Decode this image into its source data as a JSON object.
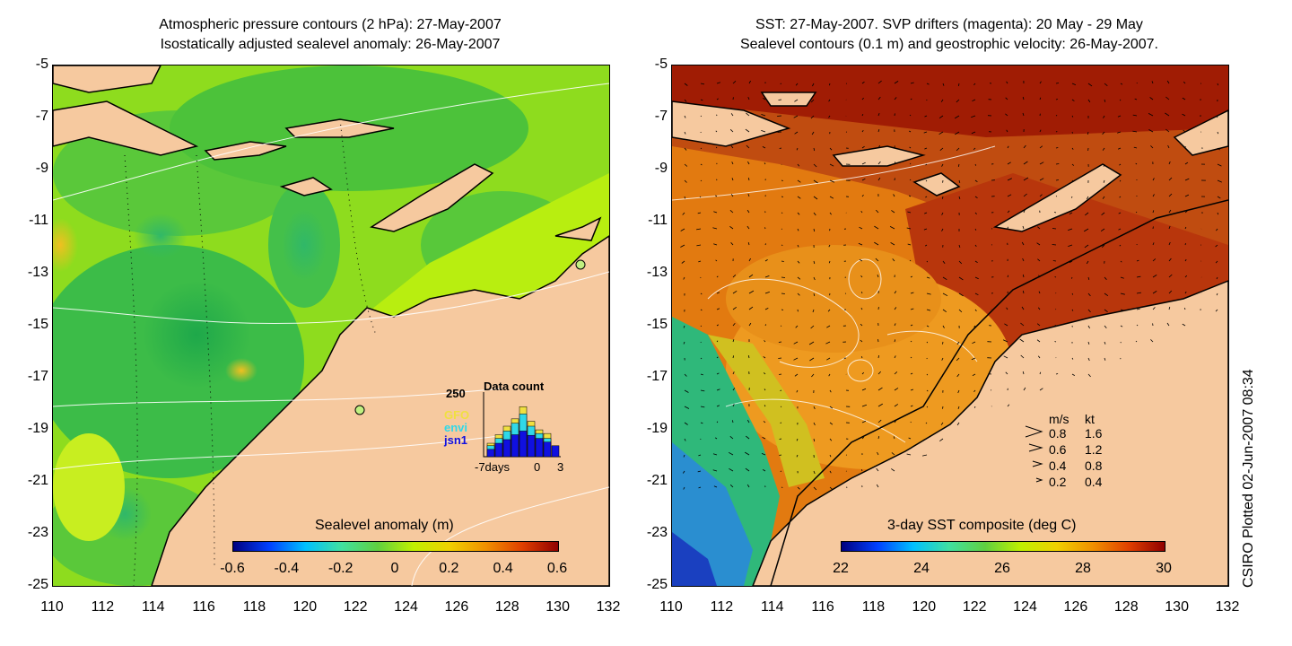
{
  "left": {
    "title_line1": "Atmospheric pressure contours (2 hPa): 27-May-2007",
    "title_line2": "Isostatically adjusted sealevel anomaly: 26-May-2007",
    "colorbar": {
      "title": "Sealevel anomaly (m)",
      "ticks": [
        "-0.6",
        "-0.4",
        "-0.2",
        "0",
        "0.2",
        "0.4",
        "0.6"
      ]
    },
    "inset": {
      "top_value": "250",
      "title": "Data count",
      "legend": [
        {
          "label": "GFO",
          "color": "#f0e040"
        },
        {
          "label": "envi",
          "color": "#30d8e8"
        },
        {
          "label": "jsn1",
          "color": "#1010e0"
        }
      ],
      "x_labels": [
        "-7days",
        "0",
        "3"
      ],
      "bars_jsn1": [
        0.12,
        0.22,
        0.28,
        0.36,
        0.42,
        0.35,
        0.3,
        0.24,
        0.18
      ],
      "bars_envi": [
        0.18,
        0.3,
        0.42,
        0.55,
        0.7,
        0.5,
        0.38,
        0.3,
        0.0
      ],
      "bars_gfo": [
        0.22,
        0.36,
        0.5,
        0.62,
        0.82,
        0.58,
        0.44,
        0.38,
        0.0
      ]
    }
  },
  "right": {
    "title_line1": "SST: 27-May-2007. SVP drifters (magenta): 20 May - 29 May",
    "title_line2": "Sealevel contours (0.1 m) and geostrophic velocity: 26-May-2007.",
    "colorbar": {
      "title": "3-day SST composite (deg C)",
      "ticks": [
        "22",
        "24",
        "26",
        "28",
        "30"
      ]
    },
    "velocity_legend": {
      "header_ms": "m/s",
      "header_kt": "kt",
      "rows": [
        {
          "ms": "0.8",
          "kt": "1.6"
        },
        {
          "ms": "0.6",
          "kt": "1.2"
        },
        {
          "ms": "0.4",
          "kt": "0.8"
        },
        {
          "ms": "0.2",
          "kt": "0.4"
        }
      ]
    }
  },
  "axes": {
    "y_ticks": [
      "-5",
      "-7",
      "-9",
      "-11",
      "-13",
      "-15",
      "-17",
      "-19",
      "-21",
      "-23",
      "-25"
    ],
    "x_ticks": [
      "110",
      "112",
      "114",
      "116",
      "118",
      "120",
      "122",
      "124",
      "126",
      "128",
      "130",
      "132"
    ]
  },
  "credit": "CSIRO Plotted 02-Jun-2007 08:34",
  "colors": {
    "land": "#f6c99f",
    "sla_green": "#6ccc2a",
    "sla_yellowgreen": "#b8f000",
    "sst_orange": "#e07a10",
    "sst_darkred": "#b02000"
  }
}
